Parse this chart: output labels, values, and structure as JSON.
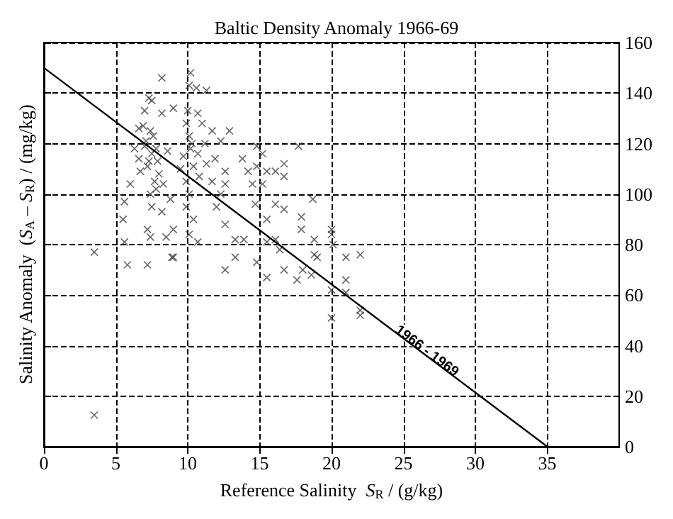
{
  "chart_data": {
    "type": "scatter",
    "title": "Baltic Density Anomaly 1966-69",
    "xlabel": "Reference Salinity  S$_{R}$ / (g/kg)",
    "ylabel": "Salinity Anomaly  (S$_{A}$ – S$_{R}$) / (mg/kg)",
    "xlim": [
      0,
      40
    ],
    "xticks": [
      0,
      5,
      10,
      15,
      20,
      25,
      30,
      35
    ],
    "ylim": [
      0,
      160
    ],
    "yticks": [
      0,
      20,
      40,
      60,
      80,
      100,
      120,
      140,
      160
    ],
    "grid": true,
    "annotations": [
      "1966 - 1969"
    ],
    "series": [
      {
        "color": "#444444",
        "marker": "cross",
        "x": [
          8.2,
          10.2,
          10.1,
          10.6,
          11.3,
          7.3,
          7.5,
          7,
          8.2,
          9,
          10,
          10.7,
          7.4,
          7.1,
          7.5,
          7.2,
          7.7,
          7.4,
          7.5,
          7.2,
          7.4,
          6.6,
          6.6,
          6.7,
          6,
          5.6,
          5.5,
          5.6,
          5.8,
          7.2,
          3.5,
          8.3,
          8.8,
          8.2,
          9,
          8.5,
          9,
          9.9,
          10.1,
          10.2,
          10.7,
          10.4,
          9.9,
          10.1,
          9.9,
          10.4,
          10.1,
          10.7,
          11,
          11.7,
          12.3,
          11.3,
          11.9,
          11.7,
          12.6,
          12,
          12.6,
          12.9,
          13.8,
          14.2,
          14.8,
          12.6,
          12.3,
          13.3,
          13.9,
          14.8,
          15.2,
          15.5,
          15.2,
          16.1,
          16.7,
          17.7,
          16.7,
          14.5,
          14.7,
          15.5,
          16.1,
          16.7,
          18.7,
          17.9,
          17.9,
          18.8,
          20.1,
          19,
          12.6,
          13.3,
          14.8,
          16.7,
          18,
          15.5,
          16.1,
          16.4,
          3.5,
          8.9,
          15.5,
          17.6,
          18.6,
          18.8,
          20,
          20,
          21,
          21,
          21,
          22,
          22,
          22,
          20,
          20,
          7,
          7.8,
          7.3,
          7.6,
          8,
          6.9,
          7.8,
          10.3,
          9.7,
          10.8,
          11.2,
          9.5,
          8.6,
          6.3,
          7.9
        ],
        "values": [
          146,
          148,
          143,
          142,
          141,
          138,
          137,
          133,
          132,
          134,
          133,
          132,
          125,
          121,
          116,
          111,
          105,
          100,
          95,
          86,
          83,
          126,
          114,
          109,
          104,
          97,
          90,
          81,
          72,
          72,
          77,
          104,
          98,
          93,
          86,
          83,
          75,
          128,
          123,
          118,
          116,
          111,
          105,
          100,
          95,
          90,
          84,
          81,
          128,
          125,
          121,
          112,
          114,
          105,
          104,
          95,
          88,
          125,
          114,
          109,
          111,
          109,
          100,
          82,
          82,
          119,
          116,
          109,
          104,
          109,
          107,
          119,
          112,
          104,
          96,
          90,
          96,
          94,
          98,
          91,
          86,
          82,
          80,
          75,
          70,
          75,
          73,
          70,
          70,
          81,
          82,
          78,
          12.5,
          75,
          67,
          66,
          68,
          76,
          62,
          51,
          75,
          66,
          61,
          76,
          54,
          52,
          84,
          86,
          119,
          118,
          113,
          123,
          108,
          127,
          102,
          120,
          115,
          107,
          120,
          110,
          117,
          118,
          113
        ]
      },
      {
        "type": "line",
        "color": "#000000",
        "marker": "none",
        "line_style": "solid",
        "x": [
          0,
          35
        ],
        "values": [
          150,
          0
        ]
      }
    ]
  }
}
